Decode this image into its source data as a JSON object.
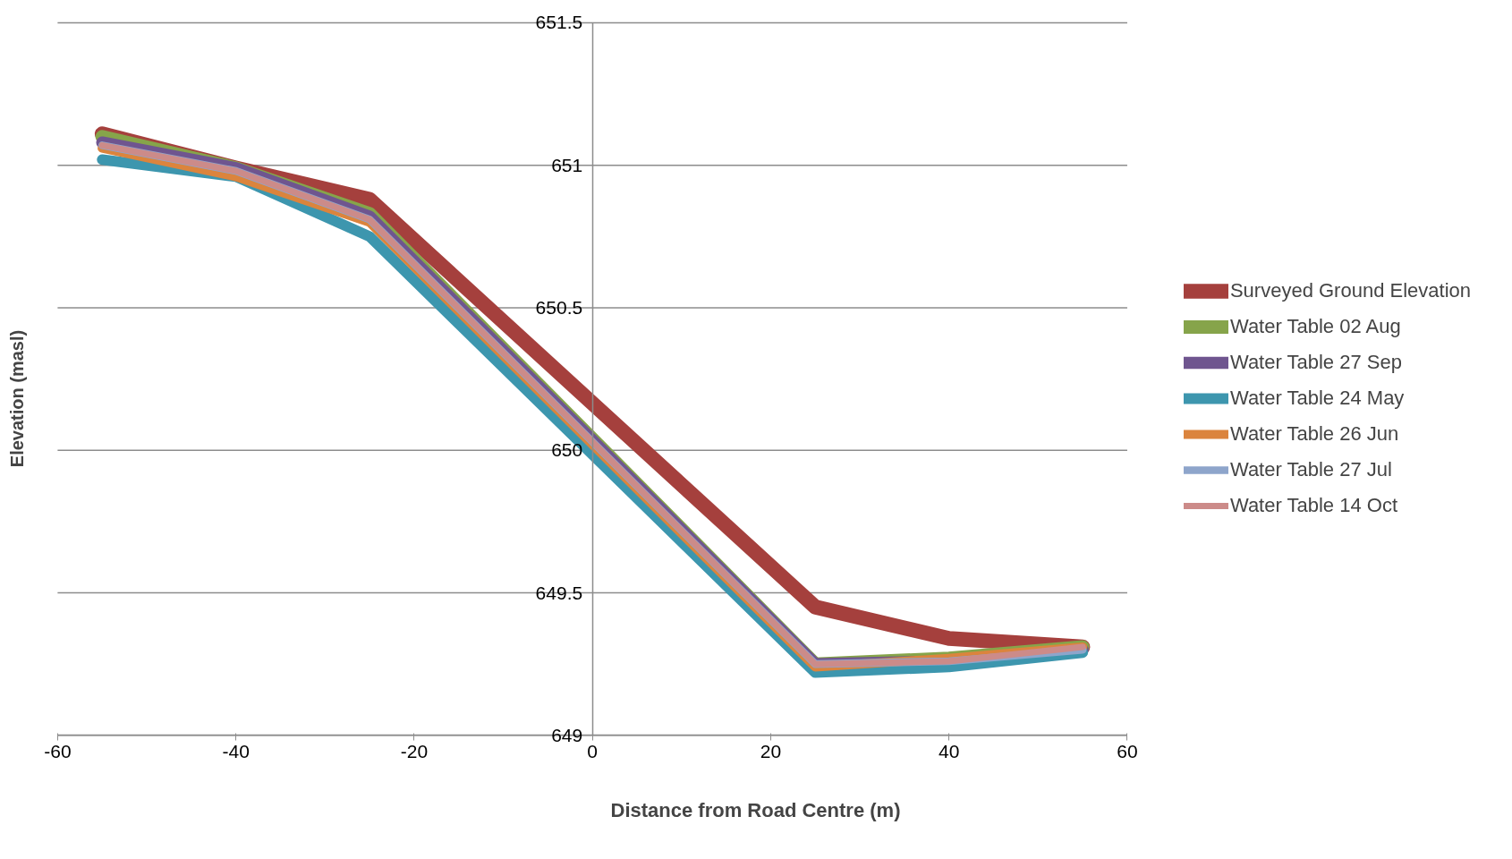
{
  "chart_data": {
    "type": "line",
    "xlabel": "Distance from Road Centre (m)",
    "ylabel": "Elevation (masl)",
    "x": [
      -55,
      -40,
      -25,
      25,
      40,
      55
    ],
    "xlim": [
      -60,
      60
    ],
    "xticks": [
      -60,
      -40,
      -20,
      0,
      20,
      40,
      60
    ],
    "ylim": [
      649,
      651.5
    ],
    "yticks": [
      649,
      649.5,
      650,
      650.5,
      651,
      651.5
    ],
    "grid": "y",
    "legend": "right",
    "marker": "none",
    "line_style": "solid",
    "series": [
      {
        "name": "Surveyed Ground Elevation",
        "color": "#a5403d",
        "values": [
          651.11,
          650.99,
          650.88,
          649.45,
          649.34,
          649.31
        ]
      },
      {
        "name": "Water Table 02 Aug",
        "color": "#86a44a",
        "values": [
          651.1,
          650.99,
          650.83,
          649.25,
          649.27,
          649.31
        ]
      },
      {
        "name": "Water Table 27 Sep",
        "color": "#6f558f",
        "values": [
          651.08,
          650.99,
          650.82,
          649.25,
          649.26,
          649.3
        ]
      },
      {
        "name": "Water Table 24 May",
        "color": "#3d96ae",
        "values": [
          651.02,
          650.96,
          650.75,
          649.22,
          649.24,
          649.29
        ]
      },
      {
        "name": "Water Table 26 Jun",
        "color": "#db843d",
        "values": [
          651.06,
          650.96,
          650.8,
          649.24,
          649.27,
          649.31
        ]
      },
      {
        "name": "Water Table 27 Jul",
        "color": "#8ea5cb",
        "values": [
          651.07,
          650.98,
          650.81,
          649.25,
          649.26,
          649.3
        ]
      },
      {
        "name": "Water Table 14 Oct",
        "color": "#cc8b89",
        "values": [
          651.07,
          650.98,
          650.81,
          649.25,
          649.26,
          649.31
        ]
      }
    ]
  }
}
